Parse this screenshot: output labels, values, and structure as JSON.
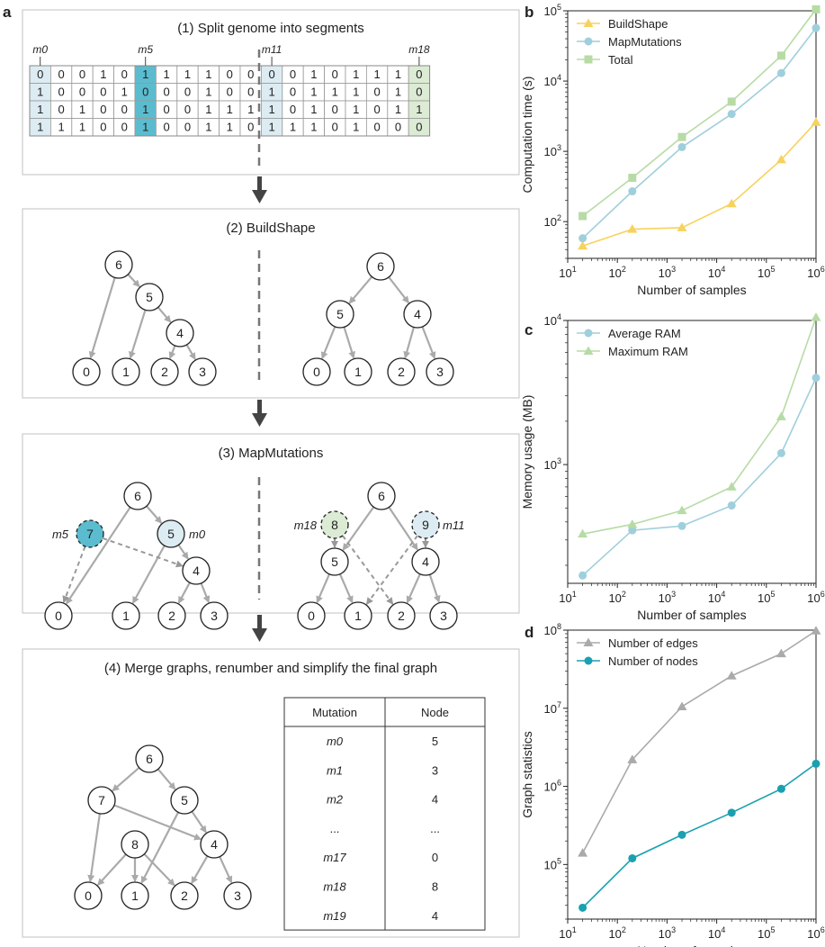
{
  "panel_letters": {
    "a": "a",
    "b": "b",
    "c": "c",
    "d": "d"
  },
  "step1": {
    "title": "(1) Split genome into segments",
    "markers": [
      "m0",
      "m5",
      "m11",
      "m18"
    ],
    "rows": [
      "0001011110000101110",
      "1000100010010111010",
      "1010010011110101011",
      "1110010011011101000"
    ],
    "highlight": {
      "0": "#dcecf2",
      "5": "#5bbccf",
      "11": "#dcecf2",
      "18": "#dcebd4"
    }
  },
  "step2": {
    "title": "(2) BuildShape"
  },
  "step3": {
    "title": "(3) MapMutations",
    "labels": {
      "n7": "m5",
      "n5": "m0",
      "n8": "m18",
      "n9": "m11"
    }
  },
  "step4": {
    "title": "(4) Merge graphs, renumber and simplify the final graph",
    "table": {
      "headers": [
        "Mutation",
        "Node"
      ],
      "rows": [
        [
          "m0",
          "5"
        ],
        [
          "m1",
          "3"
        ],
        [
          "m2",
          "4"
        ],
        [
          "...",
          "..."
        ],
        [
          "m17",
          "0"
        ],
        [
          "m18",
          "8"
        ],
        [
          "m19",
          "4"
        ]
      ]
    }
  },
  "colors": {
    "edge": "#aaaaaa",
    "arrow": "#444444",
    "dash": "#777777",
    "yellow": "#f7d25c",
    "blue": "#9fcfdc",
    "green": "#b7dba5",
    "gray": "#aaaaaa",
    "teal": "#1aa0b0"
  },
  "chart_data": [
    {
      "panel": "b",
      "type": "line",
      "xlabel": "Number of samples",
      "ylabel": "Computation time (s)",
      "xscale": "log",
      "yscale": "log",
      "xlim": [
        10,
        1000000
      ],
      "ylim": [
        30,
        100000
      ],
      "x": [
        20,
        200,
        2000,
        20000,
        200000,
        1000000
      ],
      "legend": "top-left",
      "series": [
        {
          "name": "BuildShape",
          "color": "#f7d25c",
          "marker": "triangle",
          "values": [
            45,
            78,
            82,
            180,
            760,
            2600
          ]
        },
        {
          "name": "MapMutations",
          "color": "#9fcfdc",
          "marker": "circle",
          "values": [
            58,
            270,
            1150,
            3400,
            13000,
            57000
          ]
        },
        {
          "name": "Total",
          "color": "#b7dba5",
          "marker": "square",
          "values": [
            120,
            420,
            1600,
            5100,
            23000,
            105000
          ]
        }
      ]
    },
    {
      "panel": "c",
      "type": "line",
      "xlabel": "Number of samples",
      "ylabel": "Memory usage (MB)",
      "xscale": "log",
      "yscale": "log",
      "xlim": [
        10,
        1000000
      ],
      "ylim": [
        150,
        10000
      ],
      "x": [
        20,
        200,
        2000,
        20000,
        200000,
        1000000
      ],
      "legend": "top-left",
      "series": [
        {
          "name": "Average RAM",
          "color": "#9fcfdc",
          "marker": "circle",
          "values": [
            170,
            350,
            375,
            520,
            1200,
            4000
          ]
        },
        {
          "name": "Maximum RAM",
          "color": "#b7dba5",
          "marker": "triangle",
          "values": [
            330,
            385,
            480,
            700,
            2150,
            10500
          ]
        }
      ]
    },
    {
      "panel": "d",
      "type": "line",
      "xlabel": "Number of samples",
      "ylabel": "Graph statistics",
      "xscale": "log",
      "yscale": "log",
      "xlim": [
        10,
        1000000
      ],
      "ylim": [
        20000,
        100000000
      ],
      "x": [
        20,
        200,
        2000,
        20000,
        200000,
        1000000
      ],
      "legend": "top-left",
      "series": [
        {
          "name": "Number of edges",
          "color": "#aaaaaa",
          "marker": "triangle",
          "values": [
            140000,
            2200000,
            10500000,
            26000000,
            50000000,
            98000000
          ]
        },
        {
          "name": "Number of nodes",
          "color": "#1aa0b0",
          "marker": "circle",
          "values": [
            28000,
            120000,
            240000,
            460000,
            930000,
            1950000
          ]
        }
      ]
    }
  ]
}
